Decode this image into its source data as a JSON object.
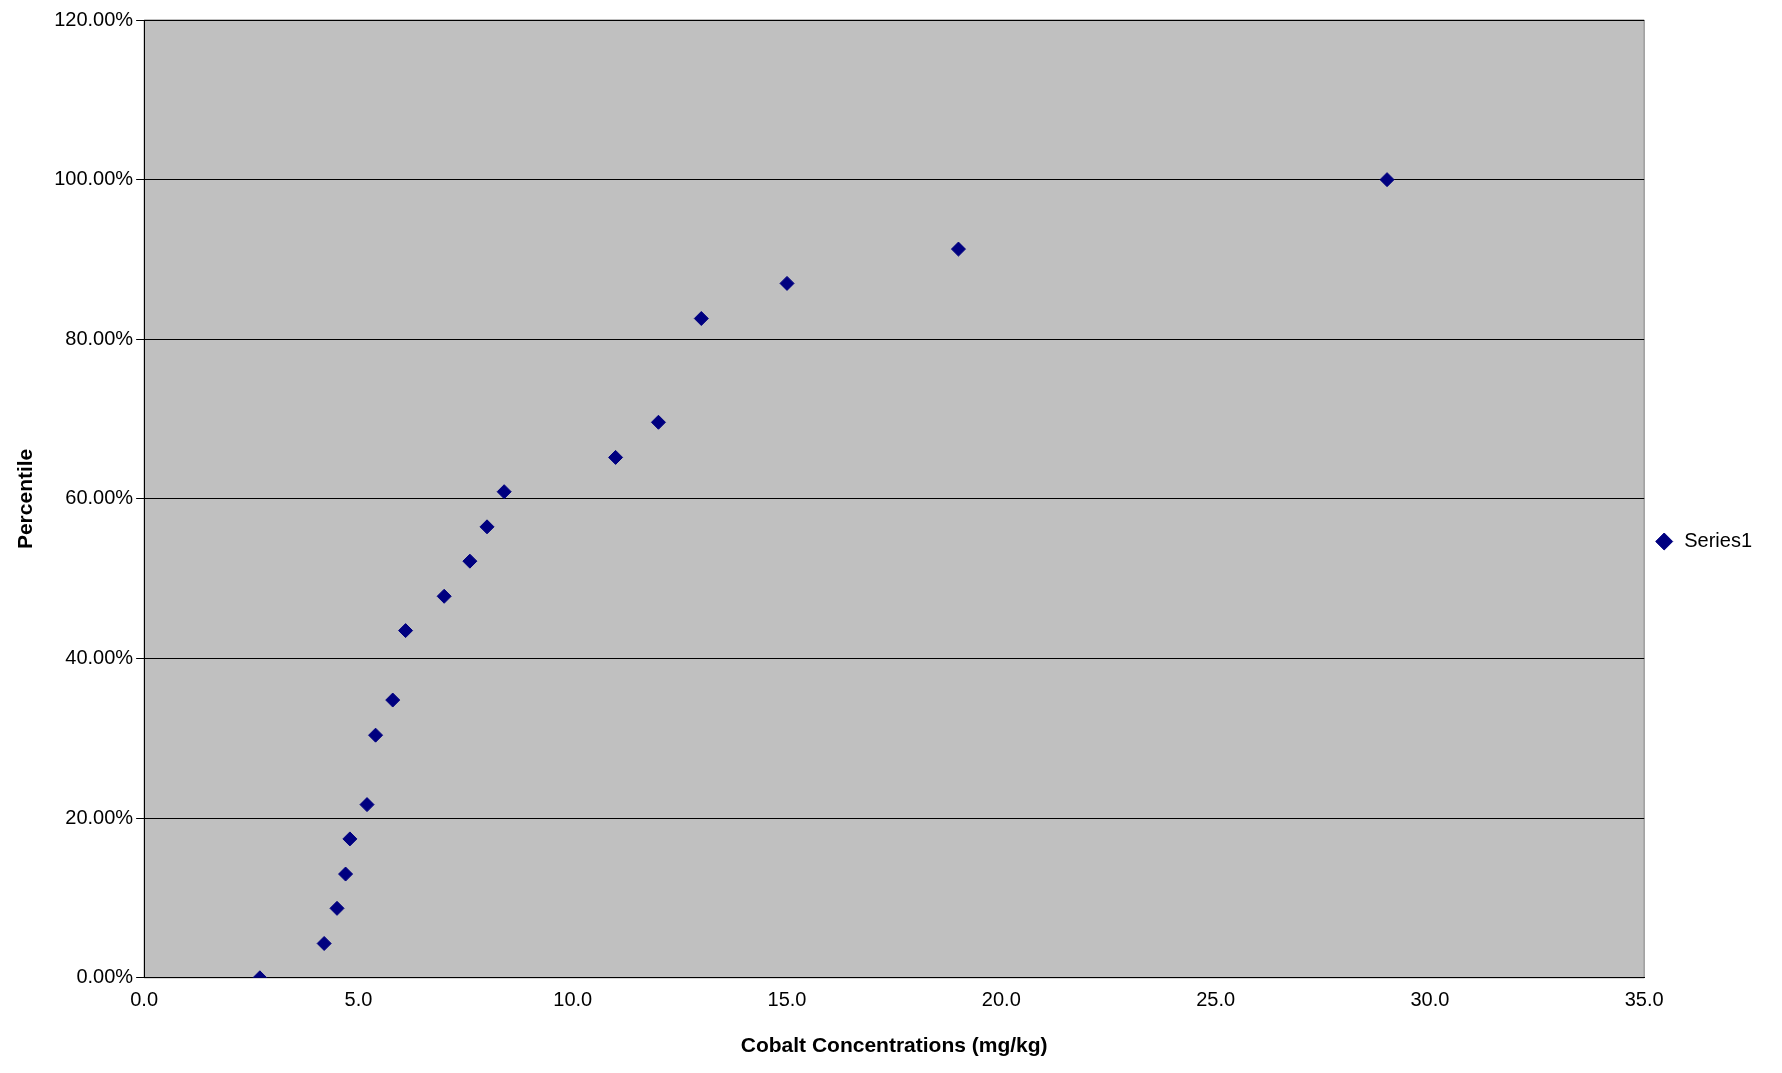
{
  "chart_data": {
    "type": "scatter",
    "xlabel": "Cobalt Concentrations (mg/kg)",
    "ylabel": "Percentile",
    "x": [
      2.7,
      4.2,
      4.5,
      4.7,
      4.8,
      5.2,
      5.4,
      5.8,
      6.1,
      7.0,
      7.6,
      8.0,
      8.4,
      11,
      12,
      13,
      15,
      19,
      29
    ],
    "series": [
      {
        "name": "Series1",
        "color": "#000080",
        "values": [
          0,
          4.3,
          8.7,
          13,
          17.4,
          21.7,
          30.4,
          34.8,
          43.5,
          47.8,
          52.2,
          56.5,
          60.9,
          65.2,
          69.6,
          82.6,
          87,
          91.3,
          100
        ]
      }
    ],
    "xlim": [
      0,
      35
    ],
    "xticks": [
      {
        "value": 0,
        "label": "0.0"
      },
      {
        "value": 5,
        "label": "5.0"
      },
      {
        "value": 10,
        "label": "10.0"
      },
      {
        "value": 15,
        "label": "15.0"
      },
      {
        "value": 20,
        "label": "20.0"
      },
      {
        "value": 25,
        "label": "25.0"
      },
      {
        "value": 30,
        "label": "30.0"
      },
      {
        "value": 35,
        "label": "35.0"
      }
    ],
    "ylim": [
      0,
      120
    ],
    "yticks": [
      {
        "value": 0,
        "label": "0.00%"
      },
      {
        "value": 20,
        "label": "20.00%"
      },
      {
        "value": 40,
        "label": "40.00%"
      },
      {
        "value": 60,
        "label": "60.00%"
      },
      {
        "value": 80,
        "label": "80.00%"
      },
      {
        "value": 100,
        "label": "100.00%"
      },
      {
        "value": 120,
        "label": "120.00%"
      }
    ],
    "grid": "y",
    "legend": "right",
    "marker": "diamond"
  }
}
